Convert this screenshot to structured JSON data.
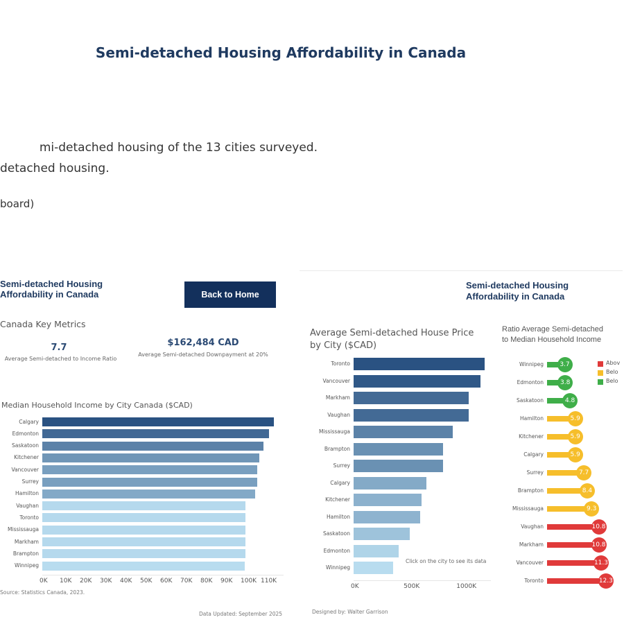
{
  "page": {
    "title": "Semi-detached Housing Affordability in Canada",
    "intro_lines": [
      "mi-detached housing of the 13 cities surveyed.",
      "detached housing.",
      "board)"
    ]
  },
  "left_dashboard": {
    "title": "Semi-detached Housing Affordability in Canada",
    "back_button": "Back to Home",
    "key_metrics_title": "Canada  Key Metrics",
    "metrics": [
      {
        "value": "7.7",
        "label": "Average Semi-detached to Income Ratio"
      },
      {
        "value": "$162,484 CAD",
        "label": "Average Semi-detached Downpayment at 20%"
      }
    ],
    "source": "Source: Statistics Canada, 2023.",
    "updated": "Data Updated: September 2025"
  },
  "right_dashboard": {
    "title": "Semi-detached Housing Affordability in Canada",
    "hint": "Click on the city to see its data",
    "designed_by": "Designed by: Walter Garrison",
    "legend": [
      {
        "label": "Abov",
        "color": "#e03a3a"
      },
      {
        "label": "Belo",
        "color": "#f6be2b"
      },
      {
        "label": "Belo",
        "color": "#3fae49"
      }
    ]
  },
  "chart_data": [
    {
      "type": "bar",
      "orientation": "horizontal",
      "title": "Median Household Income by City Canada ($CAD)",
      "categories": [
        "Calgary",
        "Edmonton",
        "Saskatoon",
        "Kitchener",
        "Vancouver",
        "Surrey",
        "Hamilton",
        "Vaughan",
        "Toronto",
        "Mississauga",
        "Markham",
        "Brampton",
        "Winnipeg"
      ],
      "values": [
        115000,
        112700,
        110000,
        108000,
        107000,
        107000,
        106000,
        101000,
        101000,
        101000,
        101000,
        101000,
        100700
      ],
      "xlim": [
        0,
        120000
      ],
      "tick_labels": [
        "0K",
        "10K",
        "20K",
        "30K",
        "40K",
        "50K",
        "60K",
        "70K",
        "80K",
        "90K",
        "100K",
        "110K"
      ],
      "color_scale": [
        "#b8dcef",
        "#2a5282"
      ]
    },
    {
      "type": "bar",
      "orientation": "horizontal",
      "title": "Average Semi-detached House Price by City ($CAD)",
      "categories": [
        "Toronto",
        "Vancouver",
        "Markham",
        "Vaughan",
        "Mississauga",
        "Brampton",
        "Surrey",
        "Calgary",
        "Kitchener",
        "Hamilton",
        "Saskatoon",
        "Edmonton",
        "Winnipeg"
      ],
      "values": [
        1243000,
        1204000,
        1092000,
        1092000,
        941000,
        849000,
        849000,
        691000,
        645000,
        632000,
        533000,
        428000,
        375000
      ],
      "xlim": [
        0,
        1300000
      ],
      "tick_labels": [
        "0K",
        "500K",
        "1000K"
      ],
      "color_scale": [
        "#b8dcef",
        "#2a5282"
      ]
    },
    {
      "type": "lollipop",
      "title": "Ratio Average Semi-detached to Median Household Income",
      "title_lines": [
        "Ratio Average Semi-detached",
        "to Median Household Income"
      ],
      "categories": [
        "Winnipeg",
        "Edmonton",
        "Saskatoon",
        "Hamilton",
        "Kitchener",
        "Calgary",
        "Surrey",
        "Brampton",
        "Mississauga",
        "Vaughan",
        "Markham",
        "Vancouver",
        "Toronto"
      ],
      "values": [
        3.7,
        3.8,
        4.8,
        5.9,
        5.9,
        5.9,
        7.7,
        8.4,
        9.3,
        10.8,
        10.8,
        11.3,
        12.3
      ],
      "labels": [
        "3.7",
        "3.8",
        "4.8",
        "5.9",
        "5.9",
        "5.9",
        "7.7",
        "8.4",
        "9.3",
        "10.8",
        "10.8",
        "11.3",
        "12.3"
      ],
      "colors": [
        "#3fae49",
        "#3fae49",
        "#3fae49",
        "#f6be2b",
        "#f6be2b",
        "#f6be2b",
        "#f6be2b",
        "#f6be2b",
        "#f6be2b",
        "#e03a3a",
        "#e03a3a",
        "#e03a3a",
        "#e03a3a"
      ]
    }
  ]
}
